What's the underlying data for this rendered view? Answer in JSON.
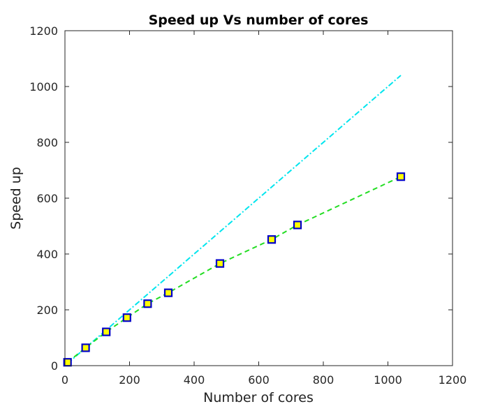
{
  "chart_data": {
    "type": "line",
    "title": "Speed up Vs number of cores",
    "xlabel": "Number of cores",
    "ylabel": "Speed up",
    "xlim": [
      0,
      1200
    ],
    "ylim": [
      0,
      1200
    ],
    "xticks": [
      0,
      200,
      400,
      600,
      800,
      1000,
      1200
    ],
    "yticks": [
      0,
      200,
      400,
      600,
      800,
      1000,
      1200
    ],
    "grid": false,
    "legend": "none",
    "series": [
      {
        "style": "dash-dot line",
        "color": "#00e5ee",
        "x": [
          8,
          1040
        ],
        "y": [
          8,
          1040
        ]
      },
      {
        "style": "dashed line with square markers",
        "color": "#22dd22",
        "marker_face": "#ffff00",
        "marker_edge": "#0000c8",
        "x": [
          8,
          64,
          128,
          192,
          256,
          320,
          480,
          640,
          720,
          1040
        ],
        "y": [
          12,
          64,
          121,
          172,
          222,
          261,
          366,
          452,
          504,
          677
        ]
      }
    ]
  }
}
